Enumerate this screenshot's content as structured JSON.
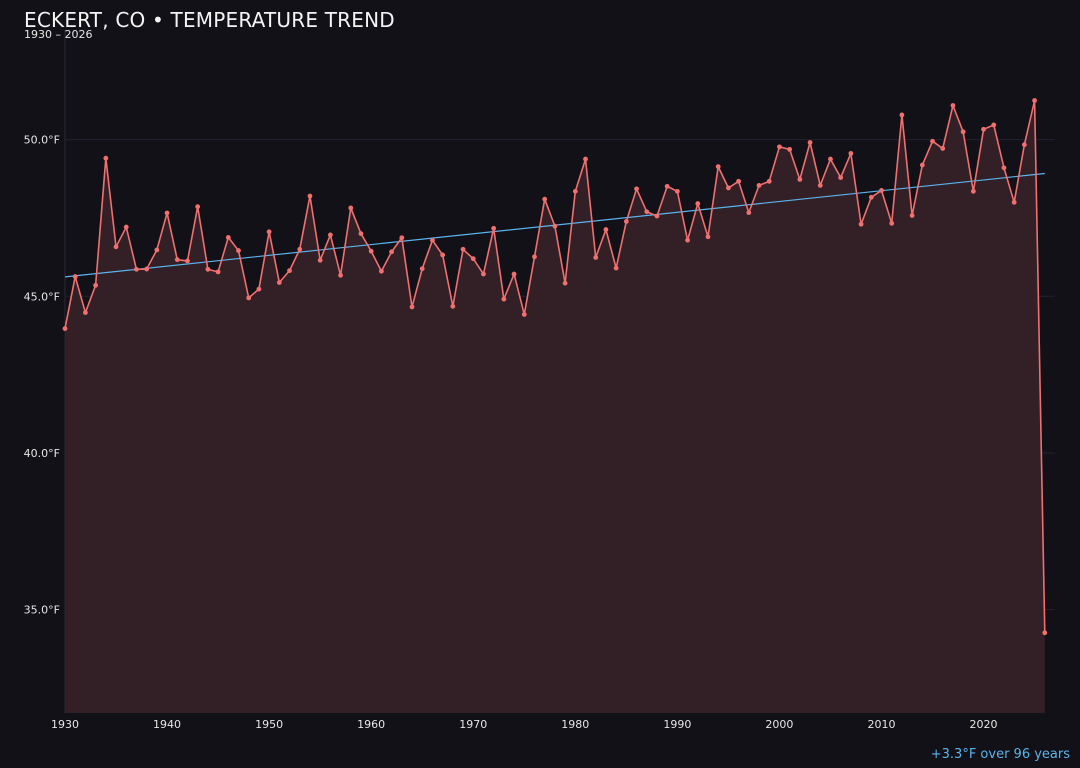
{
  "chart_data": {
    "type": "line",
    "title": "ECKERT, CO • TEMPERATURE TREND",
    "subtitle": "1930 – 2026",
    "annotation": "+3.3°F over 96 years",
    "xlabel": "",
    "ylabel": "",
    "xlim": [
      1930,
      2027
    ],
    "ylim": [
      31.7,
      53.5
    ],
    "x_ticks": [
      1930,
      1940,
      1950,
      1960,
      1970,
      1980,
      1990,
      2000,
      2010,
      2020
    ],
    "y_ticks": [
      35.0,
      40.0,
      45.0,
      50.0
    ],
    "y_tick_labels": [
      "35.0°F",
      "40.0°F",
      "45.0°F",
      "50.0°F"
    ],
    "grid": true,
    "legend": "none",
    "colors": {
      "background": "#121117",
      "series_line": "#f07070",
      "area_fill": "#331f26",
      "trend_line": "#5ab4ee",
      "grid": "#232230",
      "text": "#e6e6e6"
    },
    "x": [
      1930,
      1931,
      1932,
      1933,
      1934,
      1935,
      1936,
      1937,
      1938,
      1939,
      1940,
      1941,
      1942,
      1943,
      1944,
      1945,
      1946,
      1947,
      1948,
      1949,
      1950,
      1951,
      1952,
      1953,
      1954,
      1955,
      1956,
      1957,
      1958,
      1959,
      1960,
      1961,
      1962,
      1963,
      1964,
      1965,
      1966,
      1967,
      1968,
      1969,
      1970,
      1971,
      1972,
      1973,
      1974,
      1975,
      1976,
      1977,
      1978,
      1979,
      1980,
      1981,
      1982,
      1983,
      1984,
      1985,
      1986,
      1987,
      1988,
      1989,
      1990,
      1991,
      1992,
      1993,
      1994,
      1995,
      1996,
      1997,
      1998,
      1999,
      2000,
      2001,
      2002,
      2003,
      2004,
      2005,
      2006,
      2007,
      2008,
      2009,
      2010,
      2011,
      2012,
      2013,
      2014,
      2015,
      2016,
      2017,
      2018,
      2019,
      2020,
      2021,
      2022,
      2023,
      2024,
      2025,
      2026
    ],
    "values": [
      43.97,
      45.63,
      44.48,
      45.35,
      49.41,
      46.58,
      47.21,
      45.86,
      45.87,
      46.48,
      47.66,
      46.17,
      46.13,
      47.86,
      45.86,
      45.78,
      46.88,
      46.46,
      44.95,
      45.23,
      47.06,
      45.44,
      45.82,
      46.5,
      48.2,
      46.15,
      46.96,
      45.67,
      47.82,
      47.0,
      46.44,
      45.8,
      46.42,
      46.87,
      44.66,
      45.88,
      46.79,
      46.32,
      44.68,
      46.5,
      46.2,
      45.71,
      47.17,
      44.91,
      45.71,
      44.42,
      46.26,
      48.1,
      47.24,
      45.42,
      48.35,
      49.38,
      46.24,
      47.13,
      45.9,
      47.39,
      48.43,
      47.7,
      47.56,
      48.51,
      48.35,
      46.79,
      47.96,
      46.9,
      49.14,
      48.46,
      48.67,
      47.67,
      48.54,
      48.67,
      49.77,
      49.69,
      48.73,
      49.91,
      48.54,
      49.38,
      48.79,
      49.56,
      47.3,
      48.16,
      48.38,
      47.33,
      50.79,
      47.58,
      49.19,
      49.95,
      49.72,
      51.09,
      50.25,
      48.35,
      50.33,
      50.47,
      49.1,
      48.0,
      49.84,
      51.25,
      34.26
    ],
    "trend": {
      "x": [
        1930,
        2026
      ],
      "values": [
        45.62,
        48.92
      ]
    }
  }
}
